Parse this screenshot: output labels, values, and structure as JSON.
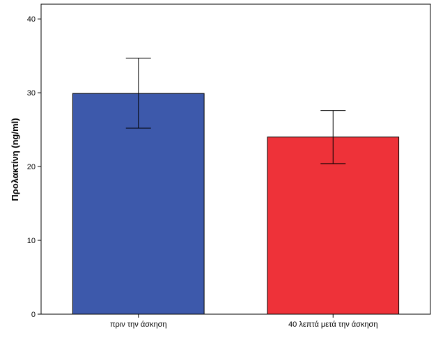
{
  "chart_data": {
    "type": "bar",
    "title": "",
    "xlabel": "",
    "ylabel": "Προλακτίνη (ng/ml)",
    "ylim": [
      0,
      42
    ],
    "yticks": [
      0,
      10,
      20,
      30,
      40
    ],
    "ytick_labels": [
      "0",
      "10",
      "20",
      "30",
      "40"
    ],
    "grid": false,
    "categories": [
      "πριν την άσκηση",
      "40 λεπτά μετά την άσκηση"
    ],
    "values": [
      29.9,
      24.0
    ],
    "error_bars": [
      {
        "low": 25.2,
        "high": 34.7
      },
      {
        "low": 20.4,
        "high": 27.6
      }
    ],
    "colors": [
      "#3D59AB",
      "#EE3239"
    ]
  }
}
